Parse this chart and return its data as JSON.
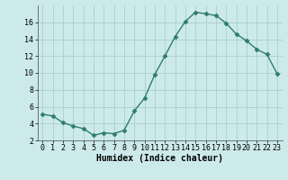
{
  "x": [
    0,
    1,
    2,
    3,
    4,
    5,
    6,
    7,
    8,
    9,
    10,
    11,
    12,
    13,
    14,
    15,
    16,
    17,
    18,
    19,
    20,
    21,
    22,
    23
  ],
  "y": [
    5.1,
    4.9,
    4.1,
    3.7,
    3.4,
    2.6,
    2.9,
    2.8,
    3.2,
    5.5,
    7.0,
    9.8,
    12.0,
    14.3,
    16.1,
    17.2,
    17.0,
    16.8,
    15.9,
    14.6,
    13.8,
    12.8,
    12.2,
    9.9
  ],
  "line_color": "#2e7d6e",
  "marker": "D",
  "markersize": 2.5,
  "linewidth": 1.0,
  "xlabel": "Humidex (Indice chaleur)",
  "xlabel_fontsize": 7,
  "bg_color": "#cdeaea",
  "grid_color": "#aacece",
  "ylim": [
    2,
    18
  ],
  "xlim": [
    -0.5,
    23.5
  ],
  "yticks": [
    2,
    4,
    6,
    8,
    10,
    12,
    14,
    16
  ],
  "xticks": [
    0,
    1,
    2,
    3,
    4,
    5,
    6,
    7,
    8,
    9,
    10,
    11,
    12,
    13,
    14,
    15,
    16,
    17,
    18,
    19,
    20,
    21,
    22,
    23
  ],
  "tick_fontsize": 6
}
